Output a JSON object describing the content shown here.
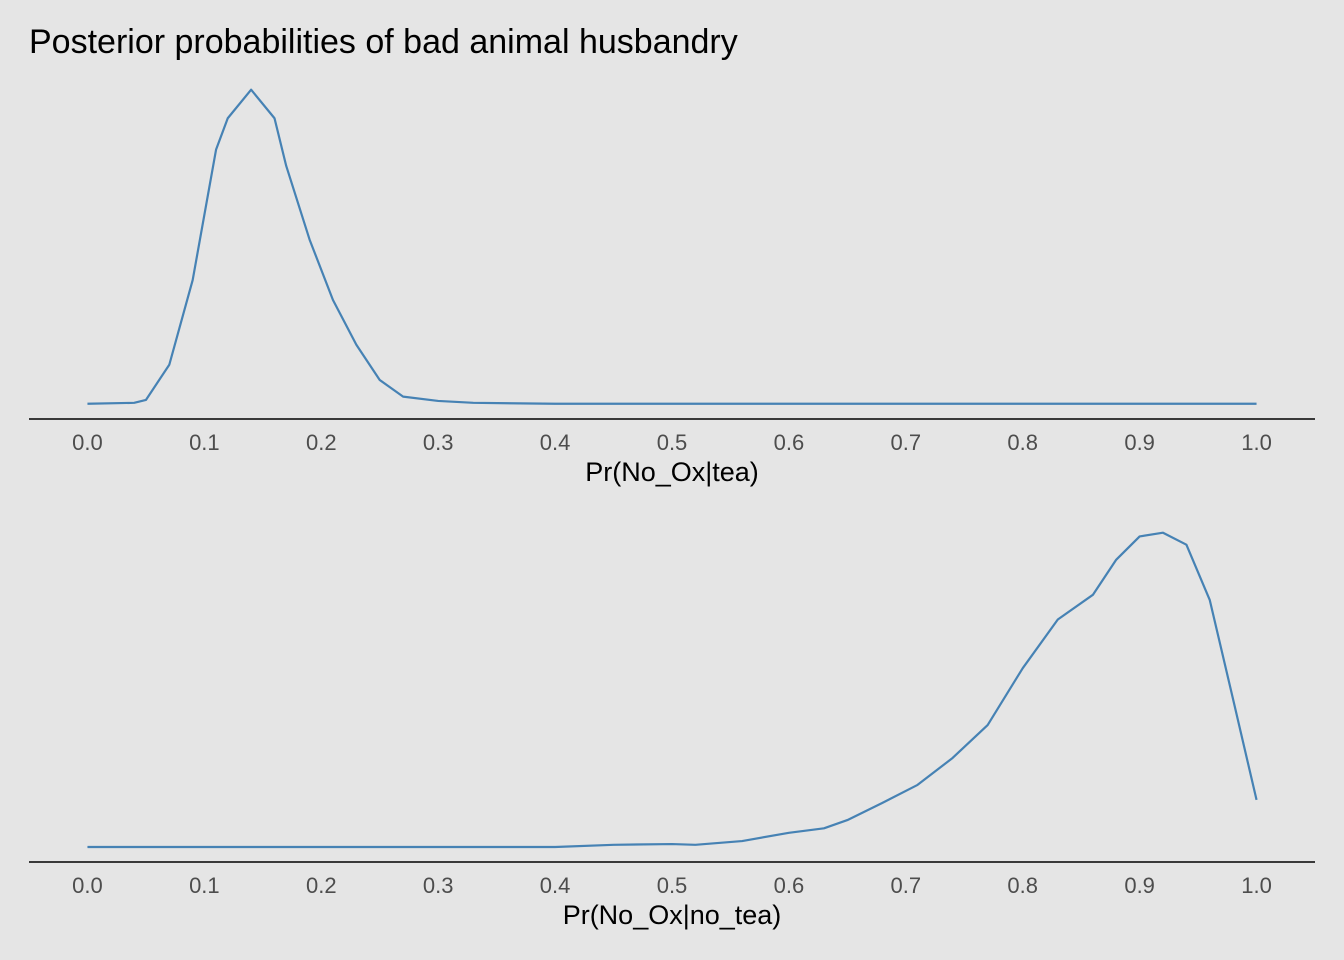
{
  "chart_data": [
    {
      "type": "line",
      "title": "Posterior probabilities of bad animal husbandry",
      "x_label": "Pr(No_Ox|tea)",
      "color": "#4682b4",
      "x": [
        0.0,
        0.04,
        0.05,
        0.07,
        0.09,
        0.11,
        0.12,
        0.14,
        0.16,
        0.17,
        0.19,
        0.21,
        0.23,
        0.25,
        0.27,
        0.3,
        0.33,
        0.4,
        0.5,
        0.6,
        0.7,
        0.8,
        0.9,
        1.0
      ],
      "values": [
        0,
        0.02,
        0.08,
        0.82,
        2.6,
        5.34,
        6.0,
        6.6,
        6.0,
        5.0,
        3.45,
        2.18,
        1.24,
        0.5,
        0.15,
        0.06,
        0.02,
        0,
        0,
        0,
        0,
        0,
        0,
        0
      ],
      "xlim": [
        -0.05,
        1.05
      ],
      "ylim": [
        -0.32,
        6.93
      ],
      "xticks": [
        {
          "value": 0,
          "label": "0.0"
        },
        0.1,
        0.2,
        0.3,
        0.4,
        0.5,
        0.6,
        0.7,
        0.8,
        0.9,
        {
          "value": 1,
          "label": "1.0"
        }
      ]
    },
    {
      "type": "line",
      "x_label": "Pr(No_Ox|no_tea)",
      "color": "#4682b4",
      "x": [
        0.0,
        0.4,
        0.45,
        0.5,
        0.52,
        0.56,
        0.6,
        0.63,
        0.65,
        0.68,
        0.71,
        0.74,
        0.77,
        0.8,
        0.83,
        0.86,
        0.88,
        0.9,
        0.92,
        0.94,
        0.96,
        0.98,
        1.0
      ],
      "values": [
        0,
        0,
        0.03,
        0.04,
        0.03,
        0.08,
        0.19,
        0.25,
        0.36,
        0.59,
        0.83,
        1.19,
        1.63,
        2.39,
        3.04,
        3.37,
        3.84,
        4.15,
        4.2,
        4.04,
        3.3,
        1.97,
        0.63
      ],
      "xlim": [
        -0.05,
        1.05
      ],
      "ylim": [
        -0.2,
        4.41
      ],
      "xticks": [
        {
          "value": 0,
          "label": "0.0"
        },
        0.1,
        0.2,
        0.3,
        0.4,
        0.5,
        0.6,
        0.7,
        0.8,
        0.9,
        {
          "value": 1,
          "label": "1.0"
        }
      ]
    }
  ]
}
